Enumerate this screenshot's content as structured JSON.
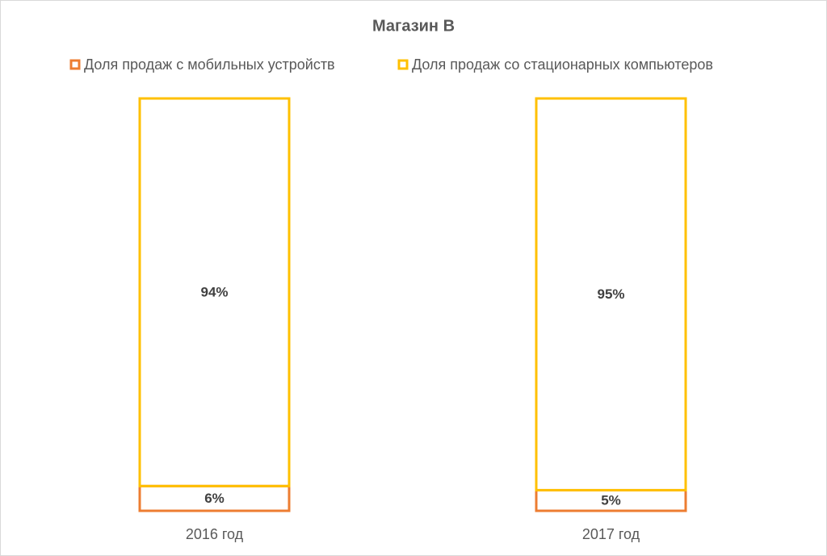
{
  "chart_data": {
    "type": "bar",
    "stacked": true,
    "title": "Магазин B",
    "categories": [
      "2016 год",
      "2017 год"
    ],
    "series": [
      {
        "name": "Доля продаж с мобильных устройств",
        "color": "#ED7D31",
        "values": [
          6,
          5
        ],
        "value_labels": [
          "6%",
          "5%"
        ]
      },
      {
        "name": "Доля продаж со стационарных компьютеров",
        "color": "#FFC000",
        "values": [
          94,
          95
        ],
        "value_labels": [
          "94%",
          "95%"
        ]
      }
    ]
  }
}
